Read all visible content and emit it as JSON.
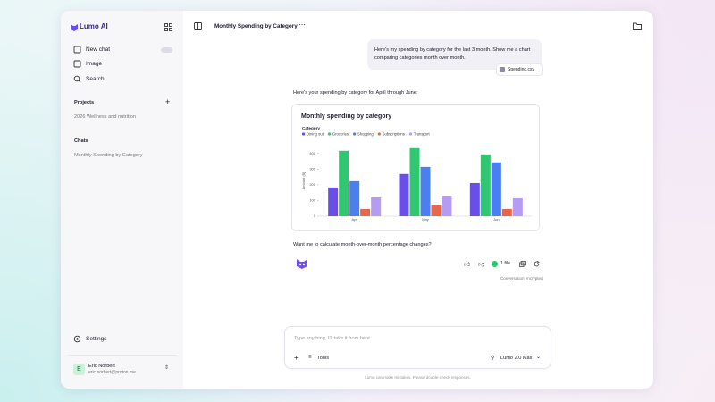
{
  "sidebar": {
    "brand": "Lumo AI",
    "nav": [
      "New chat",
      "Image",
      "Search"
    ],
    "projects_label": "Projects",
    "projects": [
      "2026 Wellness and nutrition"
    ],
    "chats_label": "Chats",
    "chats": [
      "Monthly Spending by Category"
    ],
    "settings": "Settings",
    "user": {
      "initial": "E",
      "name": "Eric Norbert",
      "email": "eric.norbert@proton.me"
    }
  },
  "topbar": {
    "title": "Monthly Spending by Category"
  },
  "conversation": {
    "user_message": "Here's my spending by category for the last 3 month. Show me a chart comparing categories month over month.",
    "attachment": "Spending.csv",
    "assistant_intro": "Here's your spending by category for April through June:",
    "assistant_followup": "Want me to calculate month-over-month percentage changes?",
    "files_label": "1 file",
    "encryption_note": "Conversation encrypted"
  },
  "composer": {
    "placeholder": "Type anything, I'll take it from here",
    "tools": "Tools",
    "model": "Lumo 2.0 Max",
    "disclaimer": "Lumo can make mistakes. Please double-check responses."
  },
  "chart_data": {
    "type": "bar",
    "title": "Monthly spending by category",
    "legend_title": "Category",
    "y_label": "Amount ($)",
    "categories": [
      "Apr",
      "May",
      "Jun"
    ],
    "series": [
      {
        "name": "Dining out",
        "color": "#6a4ee8",
        "values": [
          183,
          269,
          211
        ]
      },
      {
        "name": "Groceries",
        "color": "#2fc76f",
        "values": [
          417,
          434,
          394
        ]
      },
      {
        "name": "Shopping",
        "color": "#4b7ff0",
        "values": [
          223,
          314,
          343
        ]
      },
      {
        "name": "Subscriptions",
        "color": "#e8664b",
        "values": [
          46,
          69,
          46
        ]
      },
      {
        "name": "Transport",
        "color": "#b59cf2",
        "values": [
          120,
          131,
          114
        ]
      }
    ],
    "ylim": [
      0,
      450
    ],
    "yticks": [
      0,
      100,
      200,
      300,
      400
    ]
  }
}
